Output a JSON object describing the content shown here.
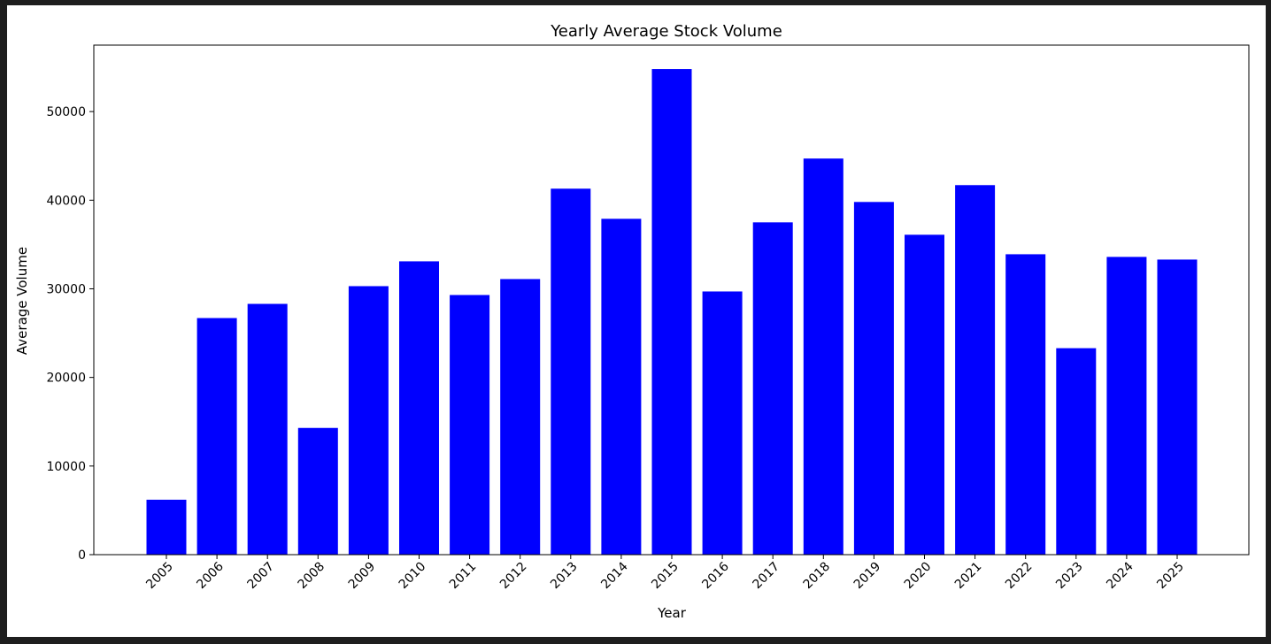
{
  "chart_data": {
    "type": "bar",
    "title": "Yearly Average Stock Volume",
    "xlabel": "Year",
    "ylabel": "Average Volume",
    "categories": [
      "2005",
      "2006",
      "2007",
      "2008",
      "2009",
      "2010",
      "2011",
      "2012",
      "2013",
      "2014",
      "2015",
      "2016",
      "2017",
      "2018",
      "2019",
      "2020",
      "2021",
      "2022",
      "2023",
      "2024",
      "2025"
    ],
    "values": [
      6200,
      26700,
      28300,
      14300,
      30300,
      33100,
      29300,
      31100,
      41300,
      37900,
      54800,
      29700,
      37500,
      44700,
      39800,
      36100,
      41700,
      33900,
      23300,
      33600,
      33300
    ],
    "ylim": [
      0,
      57500
    ],
    "yticks": [
      "0",
      "10000",
      "20000",
      "30000",
      "40000",
      "50000"
    ],
    "bar_color": "#0000ff",
    "grid": false,
    "legend": "none"
  }
}
